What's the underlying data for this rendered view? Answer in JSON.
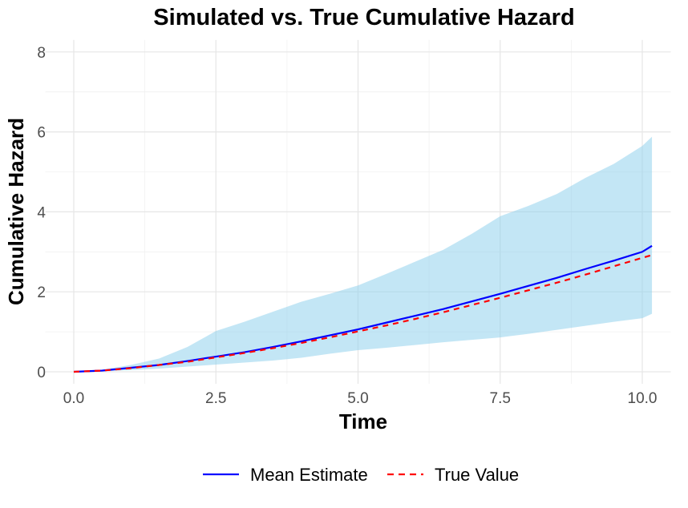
{
  "chart_data": {
    "type": "line",
    "title": "Simulated vs. True Cumulative Hazard",
    "xlabel": "Time",
    "ylabel": "Cumulative Hazard",
    "xlim": [
      -0.5,
      10.5
    ],
    "ylim": [
      -0.3,
      8.3
    ],
    "xticks": [
      "0.0",
      "2.5",
      "5.0",
      "7.5",
      "10.0"
    ],
    "xtick_values": [
      0,
      2.5,
      5,
      7.5,
      10
    ],
    "yticks": [
      "0",
      "2",
      "4",
      "6",
      "8"
    ],
    "ytick_values": [
      0,
      2,
      4,
      6,
      8
    ],
    "grid": true,
    "legend_position": "bottom",
    "x": [
      0,
      0.5,
      1,
      1.5,
      2,
      2.5,
      3,
      3.5,
      4,
      4.5,
      5,
      5.5,
      6,
      6.5,
      7,
      7.5,
      8,
      8.5,
      9,
      9.5,
      10,
      10.17
    ],
    "band": {
      "color": "#87CEEB",
      "upper": [
        0,
        0.05,
        0.17,
        0.33,
        0.62,
        1.02,
        1.25,
        1.5,
        1.75,
        1.95,
        2.16,
        2.45,
        2.75,
        3.05,
        3.45,
        3.89,
        4.15,
        4.45,
        4.85,
        5.2,
        5.65,
        5.88
      ],
      "lower": [
        0,
        0.01,
        0.04,
        0.08,
        0.13,
        0.18,
        0.23,
        0.28,
        0.35,
        0.45,
        0.54,
        0.6,
        0.67,
        0.74,
        0.8,
        0.86,
        0.95,
        1.05,
        1.15,
        1.25,
        1.34,
        1.45
      ]
    },
    "series": [
      {
        "name": "Mean Estimate",
        "color": "#0000FF",
        "dash": "solid",
        "values": [
          0,
          0.03,
          0.1,
          0.17,
          0.27,
          0.38,
          0.49,
          0.62,
          0.76,
          0.91,
          1.06,
          1.23,
          1.4,
          1.57,
          1.76,
          1.95,
          2.15,
          2.35,
          2.57,
          2.78,
          3.0,
          3.15
        ]
      },
      {
        "name": "True Value",
        "color": "#FF0000",
        "dash": "dashed",
        "values": [
          0,
          0.03,
          0.09,
          0.17,
          0.25,
          0.36,
          0.47,
          0.59,
          0.72,
          0.86,
          1.01,
          1.16,
          1.32,
          1.49,
          1.67,
          1.85,
          2.04,
          2.23,
          2.43,
          2.64,
          2.85,
          2.92
        ]
      }
    ]
  }
}
